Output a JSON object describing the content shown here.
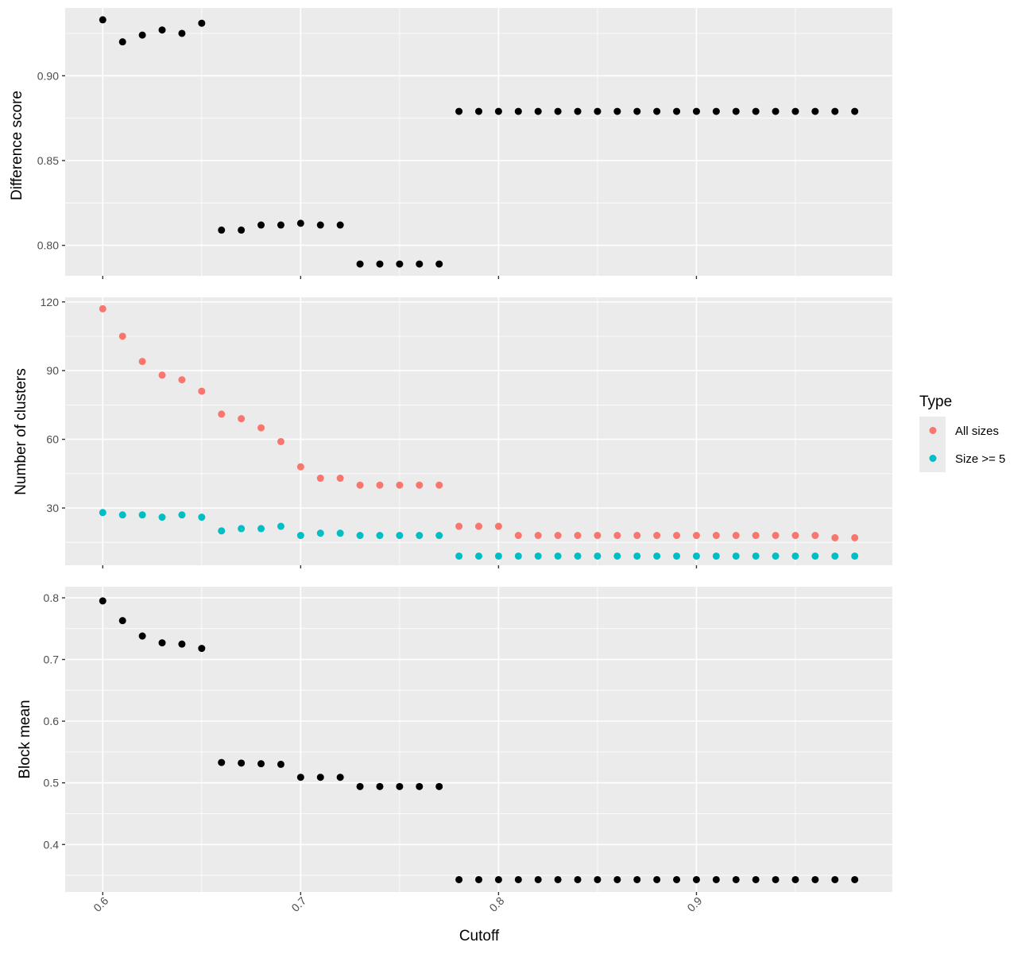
{
  "chart_data": [
    {
      "type": "scatter",
      "panel": "top",
      "ylabel": "Difference score",
      "ylim": [
        0.782,
        0.94
      ],
      "yticks": [
        0.8,
        0.85,
        0.9
      ],
      "ytick_labels": [
        "0.80",
        "0.85",
        "0.90"
      ],
      "x": [
        0.6,
        0.61,
        0.62,
        0.63,
        0.64,
        0.65,
        0.66,
        0.67,
        0.68,
        0.69,
        0.7,
        0.71,
        0.72,
        0.73,
        0.74,
        0.75,
        0.76,
        0.77,
        0.78,
        0.79,
        0.8,
        0.81,
        0.82,
        0.83,
        0.84,
        0.85,
        0.86,
        0.87,
        0.88,
        0.89,
        0.9,
        0.91,
        0.92,
        0.93,
        0.94,
        0.95,
        0.96,
        0.97,
        0.98
      ],
      "series": [
        {
          "color": "#000000",
          "values": [
            0.933,
            0.92,
            0.924,
            0.927,
            0.925,
            0.931,
            0.809,
            0.809,
            0.812,
            0.812,
            0.813,
            0.812,
            0.812,
            0.789,
            0.789,
            0.789,
            0.789,
            0.789,
            0.879,
            0.879,
            0.879,
            0.879,
            0.879,
            0.879,
            0.879,
            0.879,
            0.879,
            0.879,
            0.879,
            0.879,
            0.879,
            0.879,
            0.879,
            0.879,
            0.879,
            0.879,
            0.879,
            0.879,
            0.879
          ]
        }
      ]
    },
    {
      "type": "scatter",
      "panel": "middle",
      "ylabel": "Number of clusters",
      "ylim": [
        5,
        122
      ],
      "yticks": [
        30,
        60,
        90,
        120
      ],
      "ytick_labels": [
        "30",
        "60",
        "90",
        "120"
      ],
      "x": [
        0.6,
        0.61,
        0.62,
        0.63,
        0.64,
        0.65,
        0.66,
        0.67,
        0.68,
        0.69,
        0.7,
        0.71,
        0.72,
        0.73,
        0.74,
        0.75,
        0.76,
        0.77,
        0.78,
        0.79,
        0.8,
        0.81,
        0.82,
        0.83,
        0.84,
        0.85,
        0.86,
        0.87,
        0.88,
        0.89,
        0.9,
        0.91,
        0.92,
        0.93,
        0.94,
        0.95,
        0.96,
        0.97,
        0.98
      ],
      "series": [
        {
          "name": "All sizes",
          "color": "#f8766d",
          "values": [
            117,
            105,
            94,
            88,
            86,
            81,
            71,
            69,
            65,
            59,
            48,
            43,
            43,
            40,
            40,
            40,
            40,
            40,
            22,
            22,
            22,
            18,
            18,
            18,
            18,
            18,
            18,
            18,
            18,
            18,
            18,
            18,
            18,
            18,
            18,
            18,
            18,
            17,
            17
          ]
        },
        {
          "name": "Size >= 5",
          "color": "#00bfc4",
          "values": [
            28,
            27,
            27,
            26,
            27,
            26,
            20,
            21,
            21,
            22,
            18,
            19,
            19,
            18,
            18,
            18,
            18,
            18,
            9,
            9,
            9,
            9,
            9,
            9,
            9,
            9,
            9,
            9,
            9,
            9,
            9,
            9,
            9,
            9,
            9,
            9,
            9,
            9,
            9
          ]
        }
      ]
    },
    {
      "type": "scatter",
      "panel": "bottom",
      "ylabel": "Block mean",
      "ylim": [
        0.323,
        0.818
      ],
      "yticks": [
        0.4,
        0.5,
        0.6,
        0.7,
        0.8
      ],
      "ytick_labels": [
        "0.4",
        "0.5",
        "0.6",
        "0.7",
        "0.8"
      ],
      "x": [
        0.6,
        0.61,
        0.62,
        0.63,
        0.64,
        0.65,
        0.66,
        0.67,
        0.68,
        0.69,
        0.7,
        0.71,
        0.72,
        0.73,
        0.74,
        0.75,
        0.76,
        0.77,
        0.78,
        0.79,
        0.8,
        0.81,
        0.82,
        0.83,
        0.84,
        0.85,
        0.86,
        0.87,
        0.88,
        0.89,
        0.9,
        0.91,
        0.92,
        0.93,
        0.94,
        0.95,
        0.96,
        0.97,
        0.98
      ],
      "series": [
        {
          "color": "#000000",
          "values": [
            0.795,
            0.763,
            0.738,
            0.727,
            0.725,
            0.718,
            0.533,
            0.532,
            0.531,
            0.53,
            0.509,
            0.509,
            0.509,
            0.494,
            0.494,
            0.494,
            0.494,
            0.494,
            0.343,
            0.343,
            0.343,
            0.343,
            0.343,
            0.343,
            0.343,
            0.343,
            0.343,
            0.343,
            0.343,
            0.343,
            0.343,
            0.343,
            0.343,
            0.343,
            0.343,
            0.343,
            0.343,
            0.343,
            0.343
          ]
        }
      ]
    }
  ],
  "shared_x": {
    "xlabel": "Cutoff",
    "xlim": [
      0.581,
      0.999
    ],
    "xticks": [
      0.6,
      0.7,
      0.8,
      0.9
    ],
    "xtick_labels": [
      "0.6",
      "0.7",
      "0.8",
      "0.9"
    ]
  },
  "legend": {
    "title": "Type",
    "entries": [
      {
        "label": "All sizes",
        "color": "#f8766d"
      },
      {
        "label": "Size >= 5",
        "color": "#00bfc4"
      }
    ]
  }
}
